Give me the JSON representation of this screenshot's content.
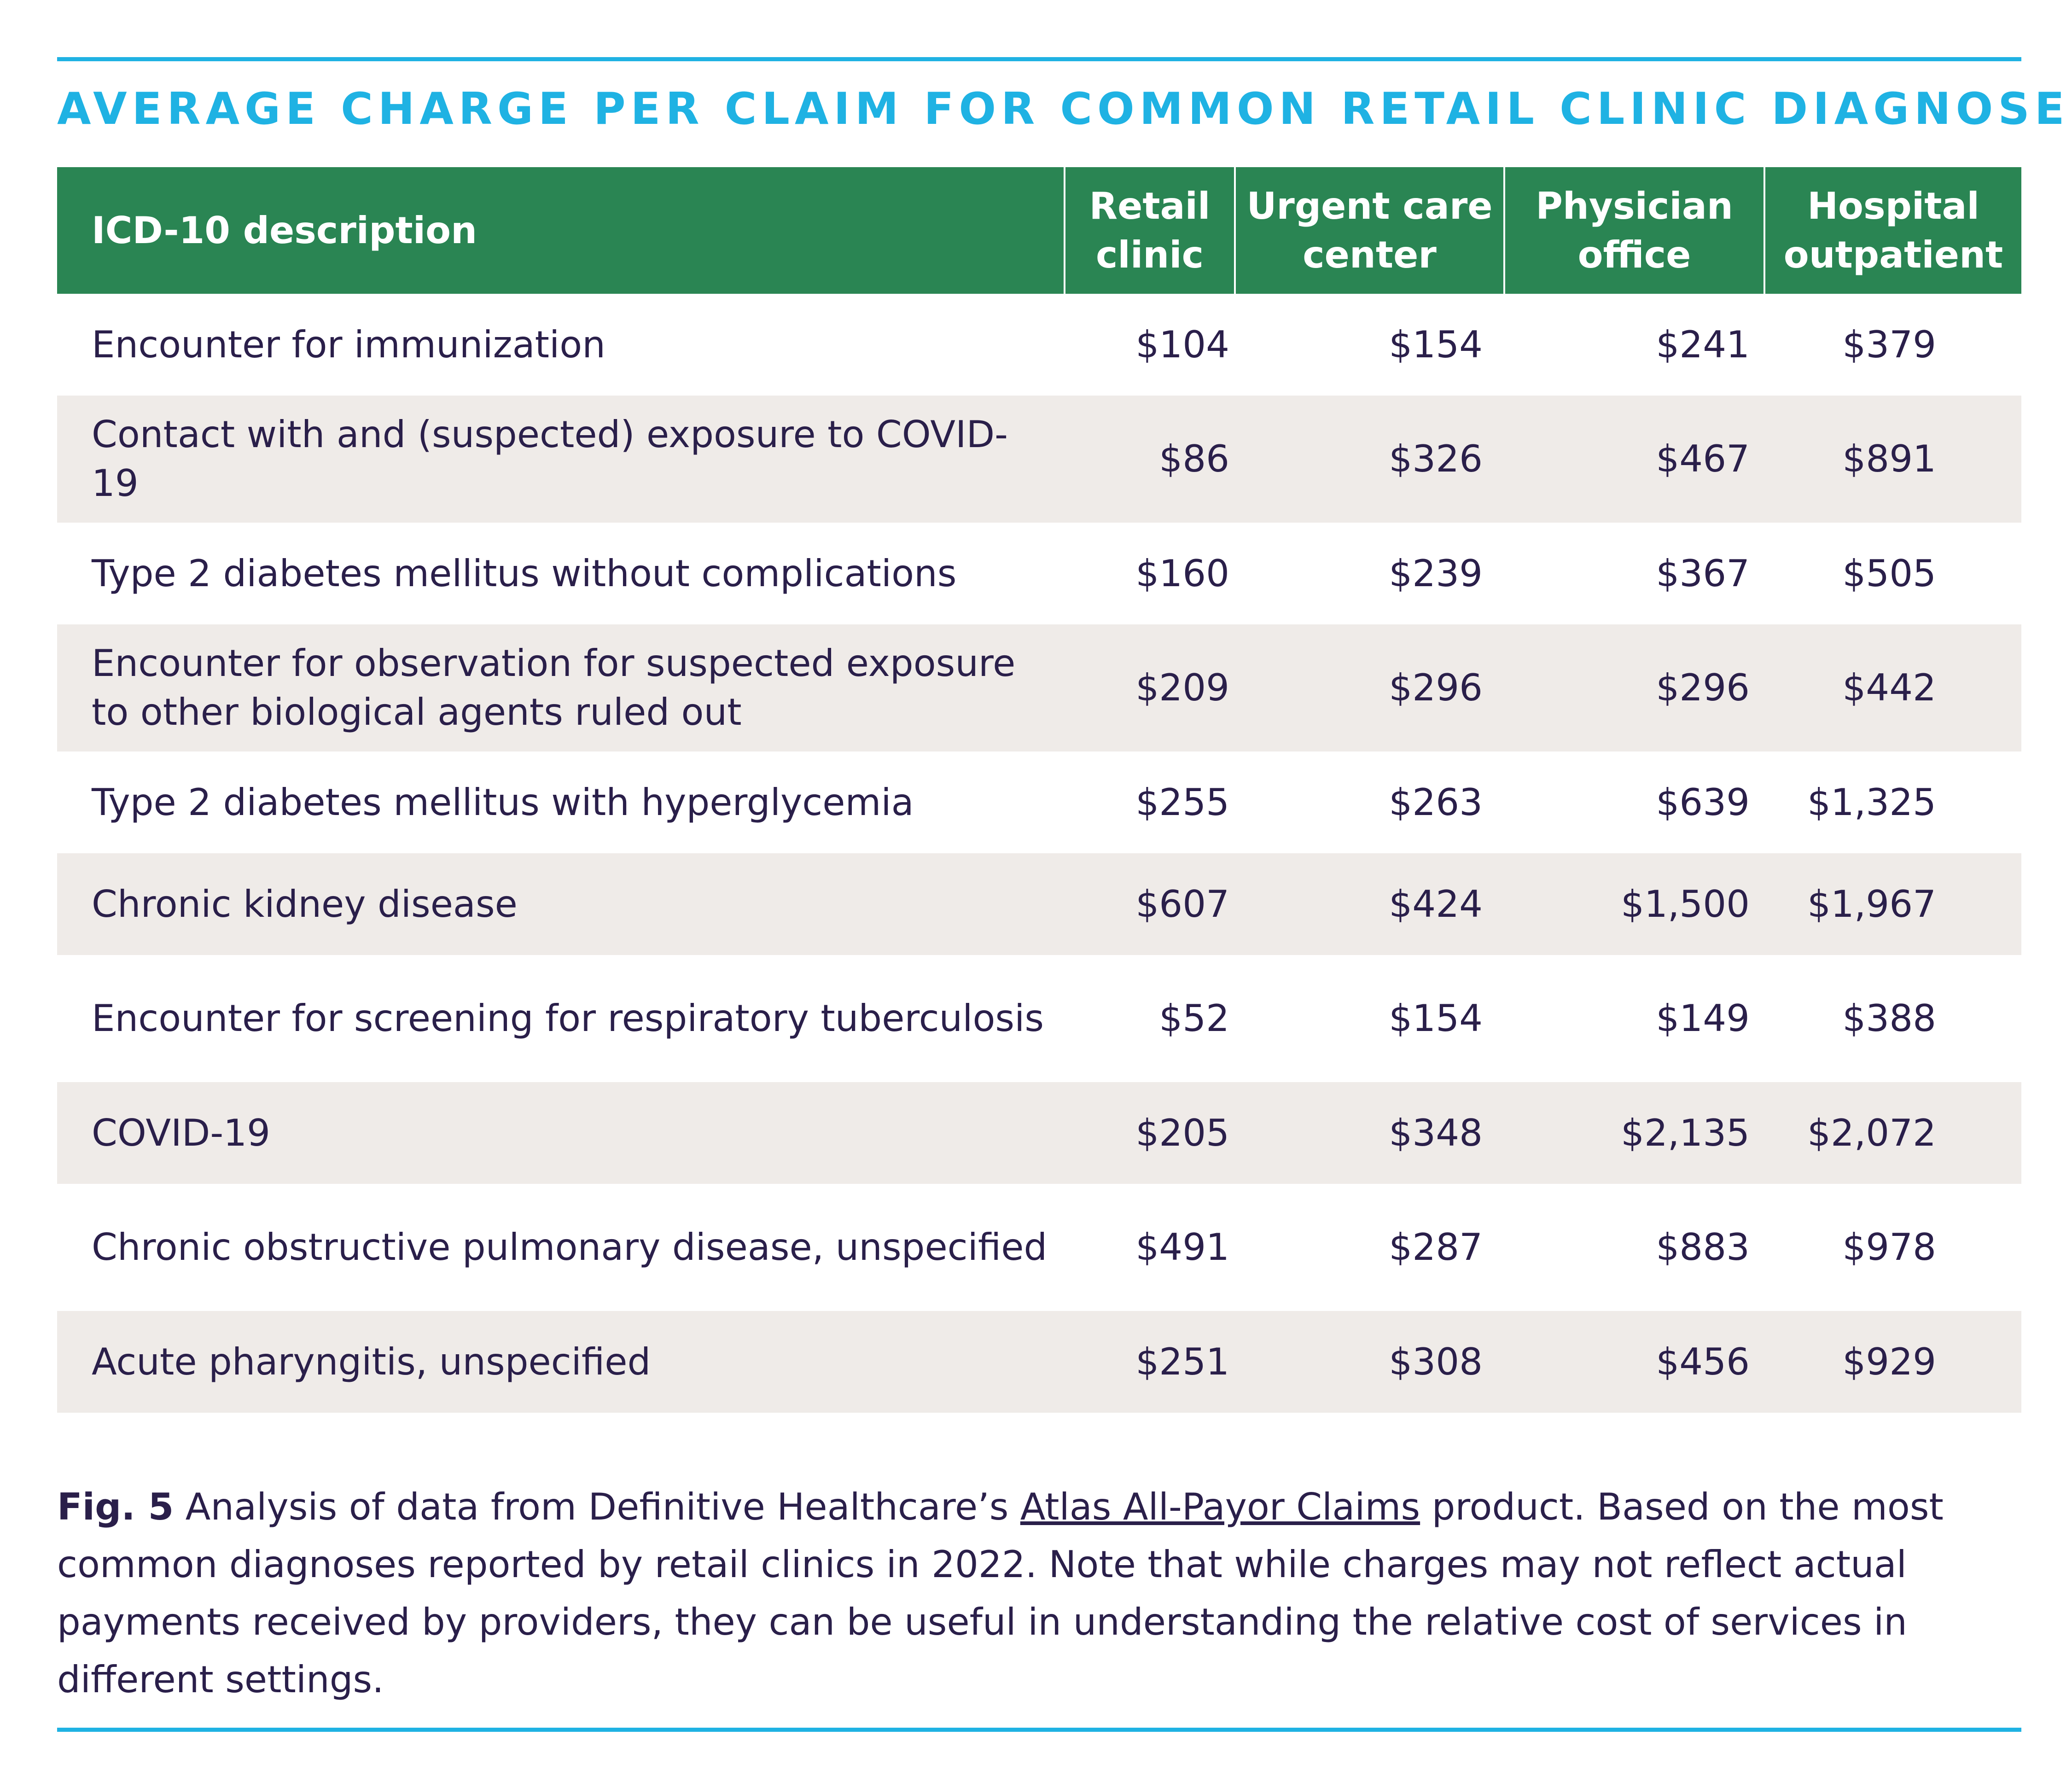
{
  "title": "AVERAGE CHARGE PER CLAIM FOR COMMON RETAIL CLINIC DIAGNOSES",
  "table": {
    "headers": [
      "ICD-10 description",
      "Retail clinic",
      "Urgent care center",
      "Physician office",
      "Hospital outpatient"
    ],
    "rows": [
      {
        "description": "Encounter for immunization",
        "values": [
          "$104",
          "$154",
          "$241",
          "$379"
        ]
      },
      {
        "description": "Contact with and (suspected) exposure to COVID-19",
        "values": [
          "$86",
          "$326",
          "$467",
          "$891"
        ]
      },
      {
        "description": "Type 2 diabetes mellitus without complications",
        "values": [
          "$160",
          "$239",
          "$367",
          "$505"
        ]
      },
      {
        "description": "Encounter for observation for suspected exposure to other biological agents ruled out",
        "values": [
          "$209",
          "$296",
          "$296",
          "$442"
        ]
      },
      {
        "description": "Type 2 diabetes mellitus with hyperglycemia",
        "values": [
          "$255",
          "$263",
          "$639",
          "$1,325"
        ]
      },
      {
        "description": "Chronic kidney disease",
        "values": [
          "$607",
          "$424",
          "$1,500",
          "$1,967"
        ]
      },
      {
        "description": "Encounter for screening for respiratory tuberculosis",
        "values": [
          "$52",
          "$154",
          "$149",
          "$388"
        ]
      },
      {
        "description": "COVID-19",
        "values": [
          "$205",
          "$348",
          "$2,135",
          "$2,072"
        ]
      },
      {
        "description": "Chronic obstructive pulmonary disease, unspecified",
        "values": [
          "$491",
          "$287",
          "$883",
          "$978"
        ]
      },
      {
        "description": "Acute pharyngitis, unspecified",
        "values": [
          "$251",
          "$308",
          "$456",
          "$929"
        ]
      }
    ]
  },
  "caption": {
    "label": "Fig. 5",
    "text_before_link": " Analysis of data from Definitive Healthcare’s ",
    "link_text": "Atlas All-Payor Claims",
    "text_after_link": " product. Based on the most common diagnoses reported by retail clinics in 2022. Note that while charges may not reflect actual payments received by providers, they can be useful in understanding the relative cost of services in different settings."
  },
  "colors": {
    "accent_blue": "#1fb2e3",
    "header_green": "#2a8553",
    "row_shade": "#efebe8",
    "text_dark": "#2a1f4a"
  }
}
